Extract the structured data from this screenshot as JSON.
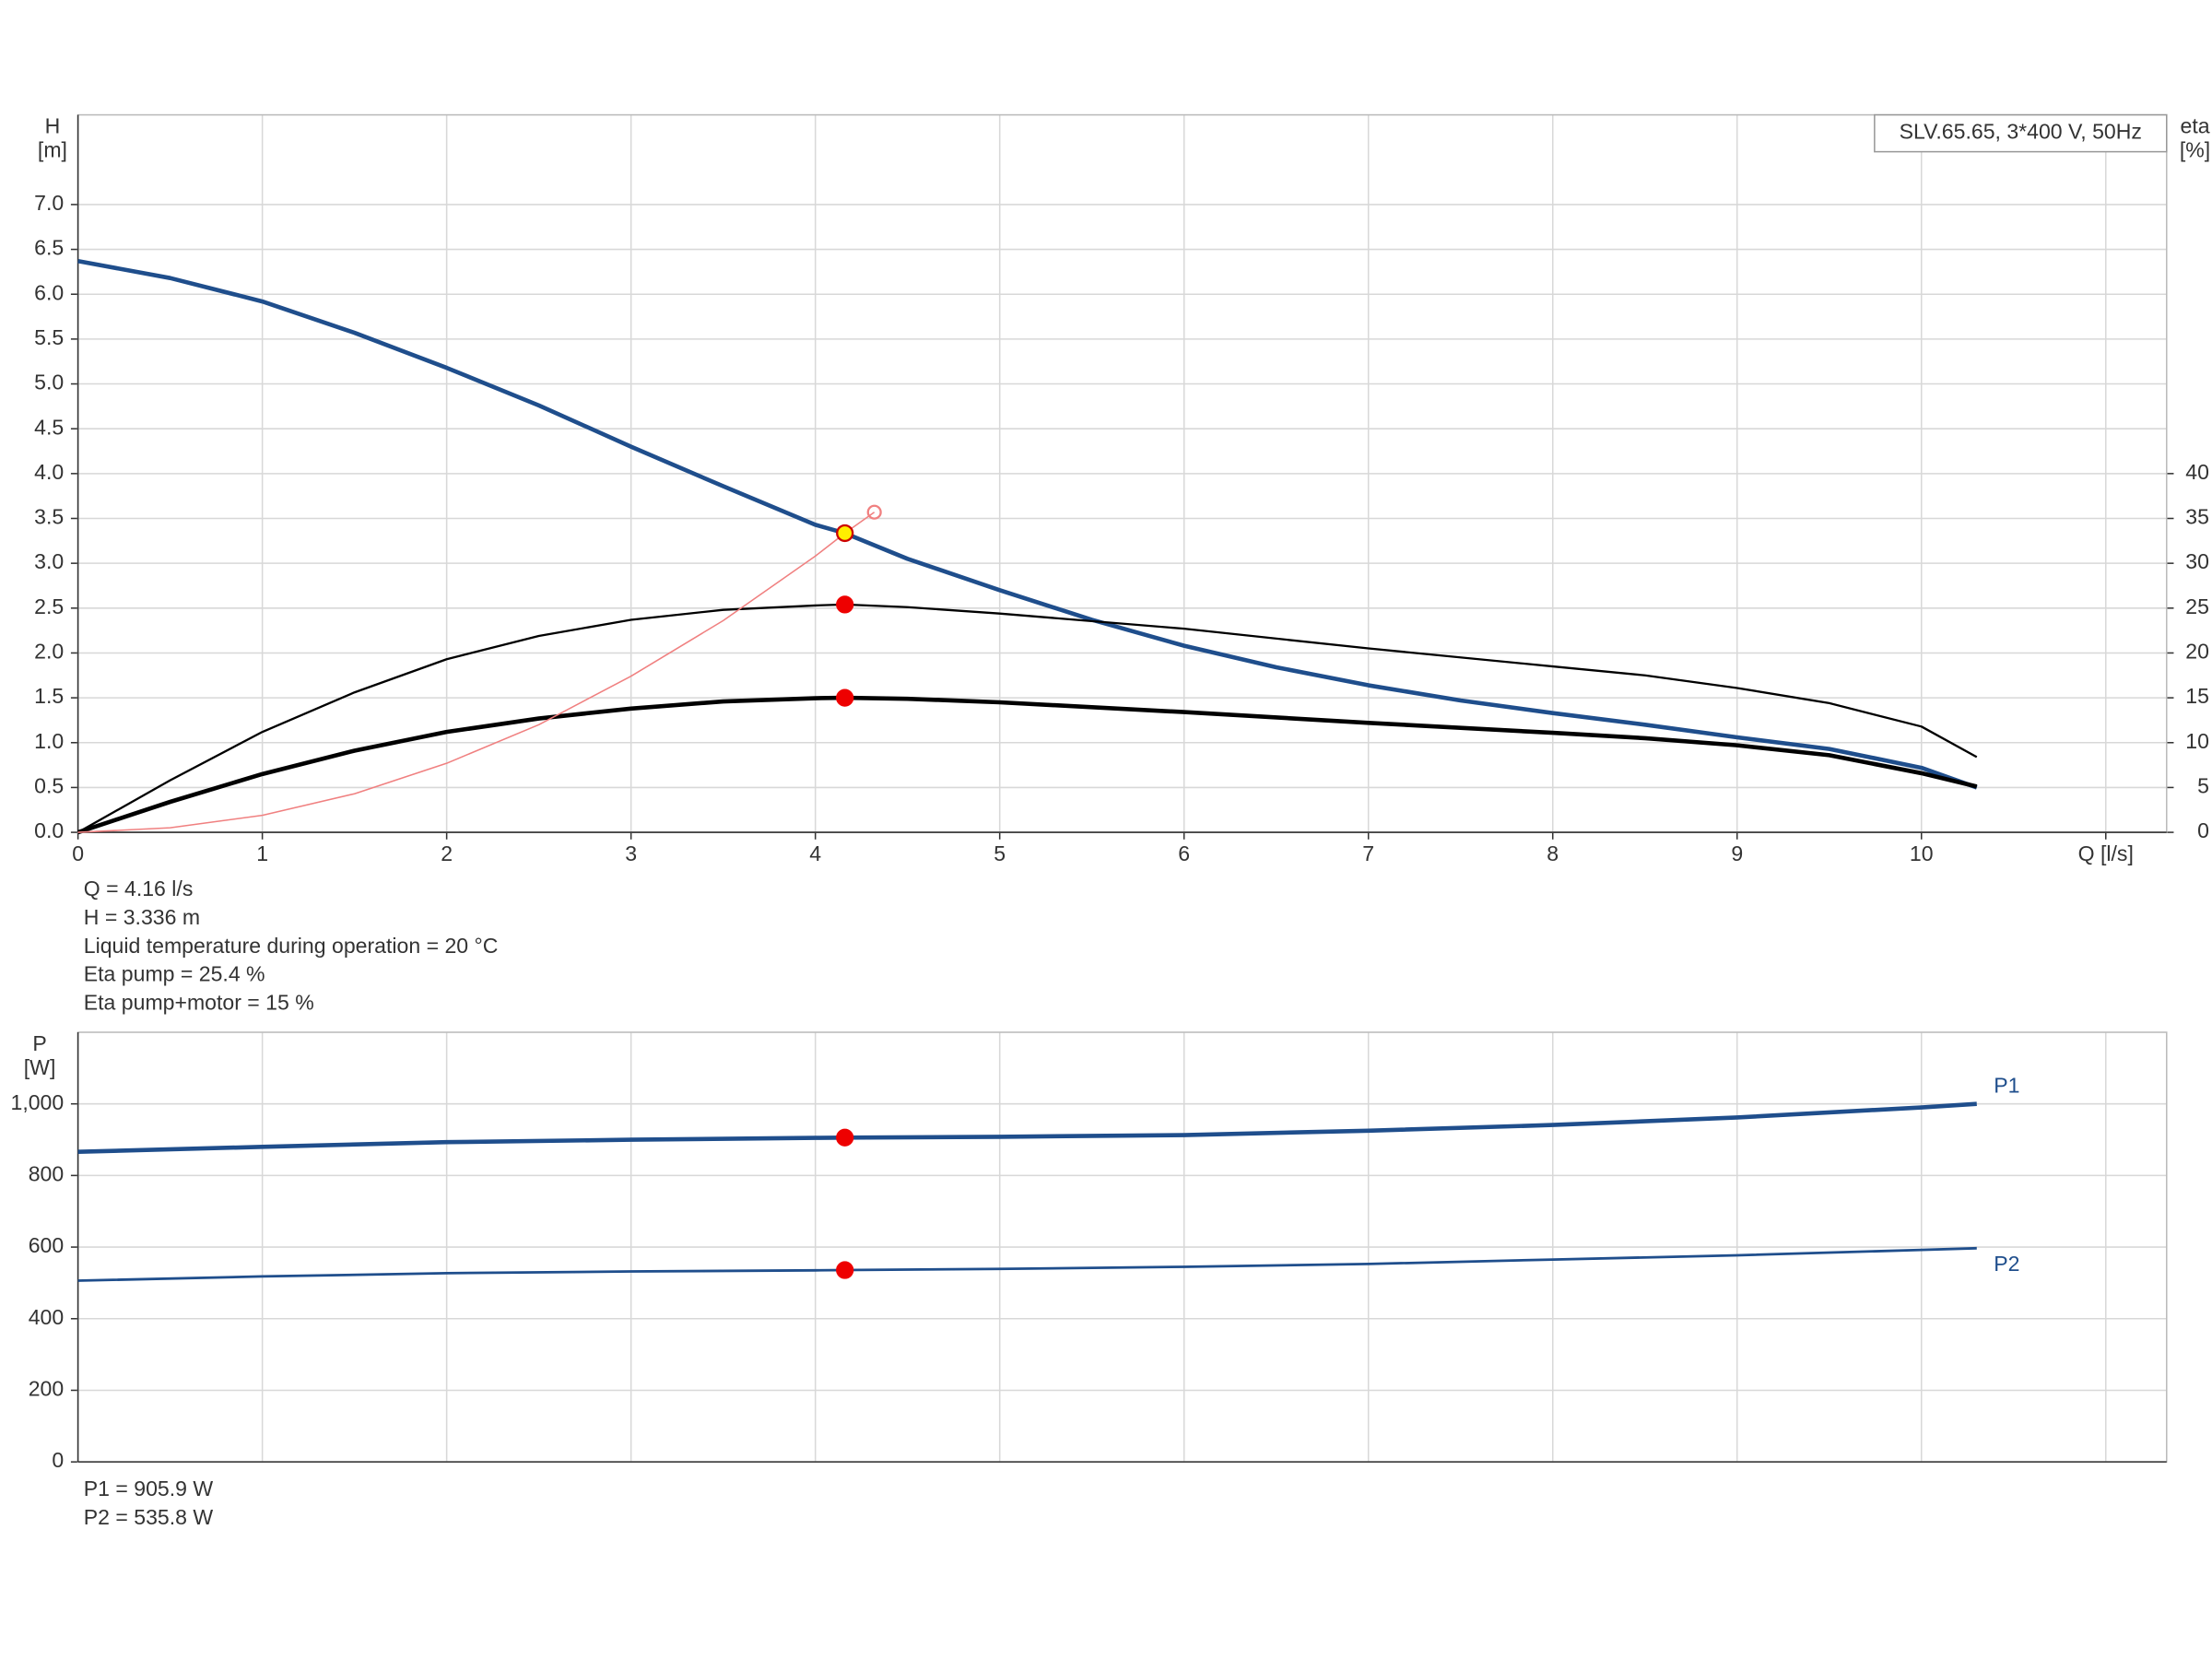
{
  "chart_data": [
    {
      "type": "line",
      "title": "SLV.65.65, 3*400 V, 50Hz",
      "y_label": [
        "H",
        "[m]"
      ],
      "y2_label": [
        "eta",
        "[%]"
      ],
      "xlim": [
        0,
        11.33
      ],
      "ylim": [
        0,
        8
      ],
      "y2lim": [
        0,
        80
      ],
      "xticks": [
        0,
        1,
        2,
        3,
        4,
        5,
        6,
        7,
        8,
        9,
        10,
        {
          "value": 11,
          "label": "Q [l/s]"
        }
      ],
      "yticks": [
        {
          "value": 0,
          "label": "0.0"
        },
        0.5,
        {
          "value": 1,
          "label": "1.0"
        },
        1.5,
        {
          "value": 2,
          "label": "2.0"
        },
        2.5,
        {
          "value": 3,
          "label": "3.0"
        },
        3.5,
        {
          "value": 4,
          "label": "4.0"
        },
        4.5,
        {
          "value": 5,
          "label": "5.0"
        },
        5.5,
        {
          "value": 6,
          "label": "6.0"
        },
        6.5,
        {
          "value": 7,
          "label": "7.0"
        }
      ],
      "y2ticks": [
        0,
        5,
        10,
        15,
        20,
        25,
        30,
        35,
        40
      ],
      "grid": true,
      "series": [
        {
          "color": "#1f4e8c",
          "width": 3,
          "x": [
            0,
            0.5,
            1,
            1.5,
            2,
            2.5,
            3,
            3.5,
            4,
            4.16,
            4.5,
            5,
            5.5,
            6,
            6.5,
            7,
            7.5,
            8,
            8.5,
            9,
            9.5,
            10,
            10.3
          ],
          "values": [
            6.37,
            6.18,
            5.92,
            5.57,
            5.18,
            4.76,
            4.3,
            3.86,
            3.43,
            3.336,
            3.05,
            2.7,
            2.37,
            2.08,
            1.84,
            1.64,
            1.47,
            1.33,
            1.2,
            1.06,
            0.93,
            0.72,
            0.5
          ]
        },
        {
          "color": "#000000",
          "width": 1.5,
          "axis": "y2",
          "x": [
            0,
            0.5,
            1,
            1.5,
            2,
            2.5,
            3,
            3.5,
            4,
            4.16,
            4.5,
            5,
            6,
            7,
            8,
            8.5,
            9,
            9.5,
            10,
            10.3
          ],
          "values": [
            0,
            5.8,
            11.2,
            15.6,
            19.3,
            21.9,
            23.7,
            24.8,
            25.3,
            25.4,
            25.1,
            24.4,
            22.7,
            20.5,
            18.5,
            17.5,
            16.1,
            14.4,
            11.8,
            8.4
          ]
        },
        {
          "color": "#000000",
          "width": 3,
          "axis": "y2",
          "x": [
            0,
            0.5,
            1,
            1.5,
            2,
            2.5,
            3,
            3.5,
            4,
            4.16,
            4.5,
            5,
            6,
            7,
            8,
            8.5,
            9,
            9.5,
            10,
            10.3
          ],
          "values": [
            0,
            3.4,
            6.5,
            9.1,
            11.2,
            12.7,
            13.8,
            14.6,
            14.95,
            15,
            14.9,
            14.5,
            13.4,
            12.2,
            11.1,
            10.5,
            9.7,
            8.6,
            6.6,
            5.1
          ]
        },
        {
          "color": "#f08080",
          "width": 1,
          "x": [
            0,
            0.5,
            1,
            1.5,
            2,
            2.5,
            3,
            3.5,
            4,
            4.16,
            4.32
          ],
          "values": [
            0,
            0.05,
            0.19,
            0.43,
            0.77,
            1.2,
            1.74,
            2.36,
            3.08,
            3.336,
            3.57
          ]
        }
      ],
      "markers": [
        {
          "x": 4.16,
          "y": 3.336,
          "fill": "#ffee00",
          "stroke": "#cc0000"
        },
        {
          "x": 4.16,
          "y": 25.4,
          "axis": "y2",
          "fill": "#ee0000",
          "stroke": "#ee0000"
        },
        {
          "x": 4.16,
          "y": 15,
          "axis": "y2",
          "fill": "#ee0000",
          "stroke": "#ee0000"
        },
        {
          "x": 4.32,
          "y": 3.57,
          "fill": "none",
          "stroke": "#f08080"
        }
      ],
      "info": [
        "Q = 4.16 l/s",
        "H = 3.336 m",
        "Liquid temperature during operation = 20 °C",
        "Eta pump = 25.4 %",
        "Eta pump+motor = 15 %"
      ]
    },
    {
      "type": "line",
      "y_label": [
        "P",
        "[W]"
      ],
      "xlim": [
        0,
        11.33
      ],
      "ylim": [
        0,
        1200
      ],
      "xticks": [
        0,
        1,
        2,
        3,
        4,
        5,
        6,
        7,
        8,
        9,
        10,
        11
      ],
      "show_xtick_labels": false,
      "yticks": [
        0,
        200,
        400,
        600,
        800,
        {
          "value": 1000,
          "label": "1,000"
        }
      ],
      "grid": true,
      "series": [
        {
          "name": "P1",
          "color": "#1f4e8c",
          "width": 3,
          "x": [
            0,
            1,
            2,
            3,
            4,
            4.16,
            5,
            6,
            7,
            8,
            9,
            10,
            10.3
          ],
          "values": [
            866,
            880,
            893,
            900,
            905,
            905.9,
            908,
            913,
            925,
            941,
            962,
            990,
            1000
          ]
        },
        {
          "name": "P2",
          "color": "#1f4e8c",
          "width": 1.8,
          "x": [
            0,
            1,
            2,
            3,
            4,
            4.16,
            5,
            6,
            7,
            8,
            9,
            10,
            10.3
          ],
          "values": [
            506,
            518,
            527,
            532,
            535,
            535.8,
            539,
            545,
            553,
            565,
            577,
            592,
            597
          ]
        }
      ],
      "markers": [
        {
          "x": 4.16,
          "y": 905.9,
          "fill": "#ee0000",
          "stroke": "#ee0000"
        },
        {
          "x": 4.16,
          "y": 535.8,
          "fill": "#ee0000",
          "stroke": "#ee0000"
        }
      ],
      "info": [
        "P1 = 905.9 W",
        "P2 = 535.8 W"
      ]
    }
  ]
}
